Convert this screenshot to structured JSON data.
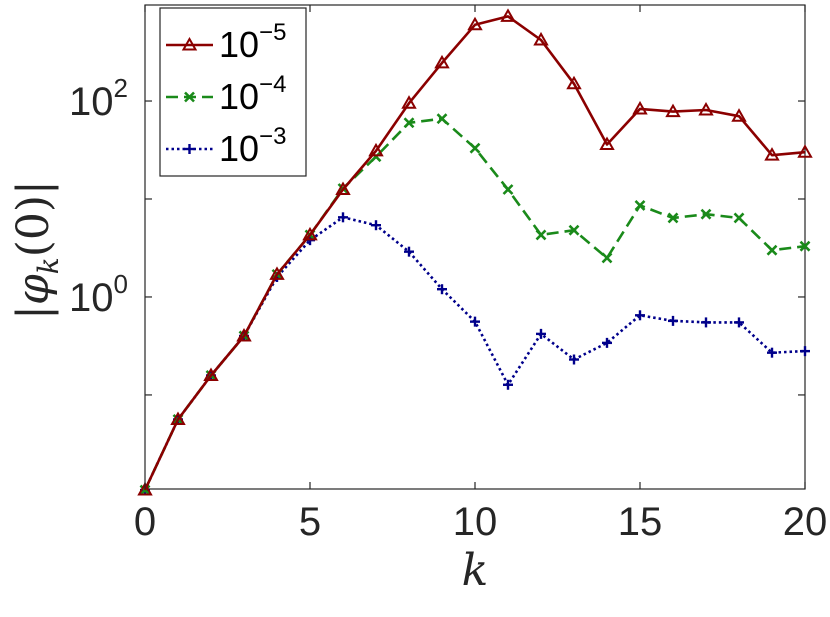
{
  "chart_data": {
    "type": "line",
    "title": "",
    "xlabel": "k",
    "ylabel": "|φ_k(0)|",
    "ylabel_parts": {
      "left_bar": "|",
      "phi": "φ",
      "sub": "k",
      "arg": "(0)",
      "right_bar": "|"
    },
    "x": [
      0,
      1,
      2,
      3,
      4,
      5,
      6,
      7,
      8,
      9,
      10,
      11,
      12,
      13,
      14,
      15,
      16,
      17,
      18,
      19,
      20
    ],
    "xlim": [
      0,
      20
    ],
    "ylim_log10": [
      -1.96,
      2.98
    ],
    "y_scale": "log",
    "xticks": [
      0,
      5,
      10,
      15,
      20
    ],
    "xtick_labels": [
      "0",
      "5",
      "10",
      "15",
      "20"
    ],
    "yticks": [
      {
        "value": 1,
        "mantissa": "10",
        "exp": "0"
      },
      {
        "value": 100,
        "mantissa": "10",
        "exp": "2"
      }
    ],
    "grid": false,
    "legend_position": "top-left",
    "series": [
      {
        "name": "10^-5",
        "name_base": "10",
        "name_exp": "−5",
        "color": "#8b0000",
        "marker": "triangle",
        "dash": "solid",
        "values": [
          0.0107,
          0.0562,
          0.158,
          0.4,
          1.7,
          4.3,
          12.5,
          31,
          95,
          245,
          600,
          730,
          420,
          150,
          36,
          83,
          78,
          81,
          70,
          28,
          30
        ]
      },
      {
        "name": "10^-4",
        "name_base": "10",
        "name_exp": "−4",
        "color": "#1a8a1a",
        "marker": "x",
        "dash": "dashed",
        "values": [
          0.0107,
          0.0562,
          0.158,
          0.4,
          1.7,
          4.3,
          12.8,
          27,
          60,
          66,
          33,
          12.5,
          4.3,
          4.8,
          2.5,
          8.6,
          6.4,
          7.0,
          6.4,
          3.0,
          3.3
        ]
      },
      {
        "name": "10^-3",
        "name_base": "10",
        "name_exp": "−3",
        "color": "#00008b",
        "marker": "plus",
        "dash": "dotted",
        "values": [
          0.0107,
          0.0562,
          0.158,
          0.4,
          1.6,
          3.8,
          6.5,
          5.4,
          2.9,
          1.2,
          0.56,
          0.127,
          0.42,
          0.23,
          0.34,
          0.65,
          0.57,
          0.55,
          0.55,
          0.27,
          0.28
        ]
      }
    ]
  }
}
